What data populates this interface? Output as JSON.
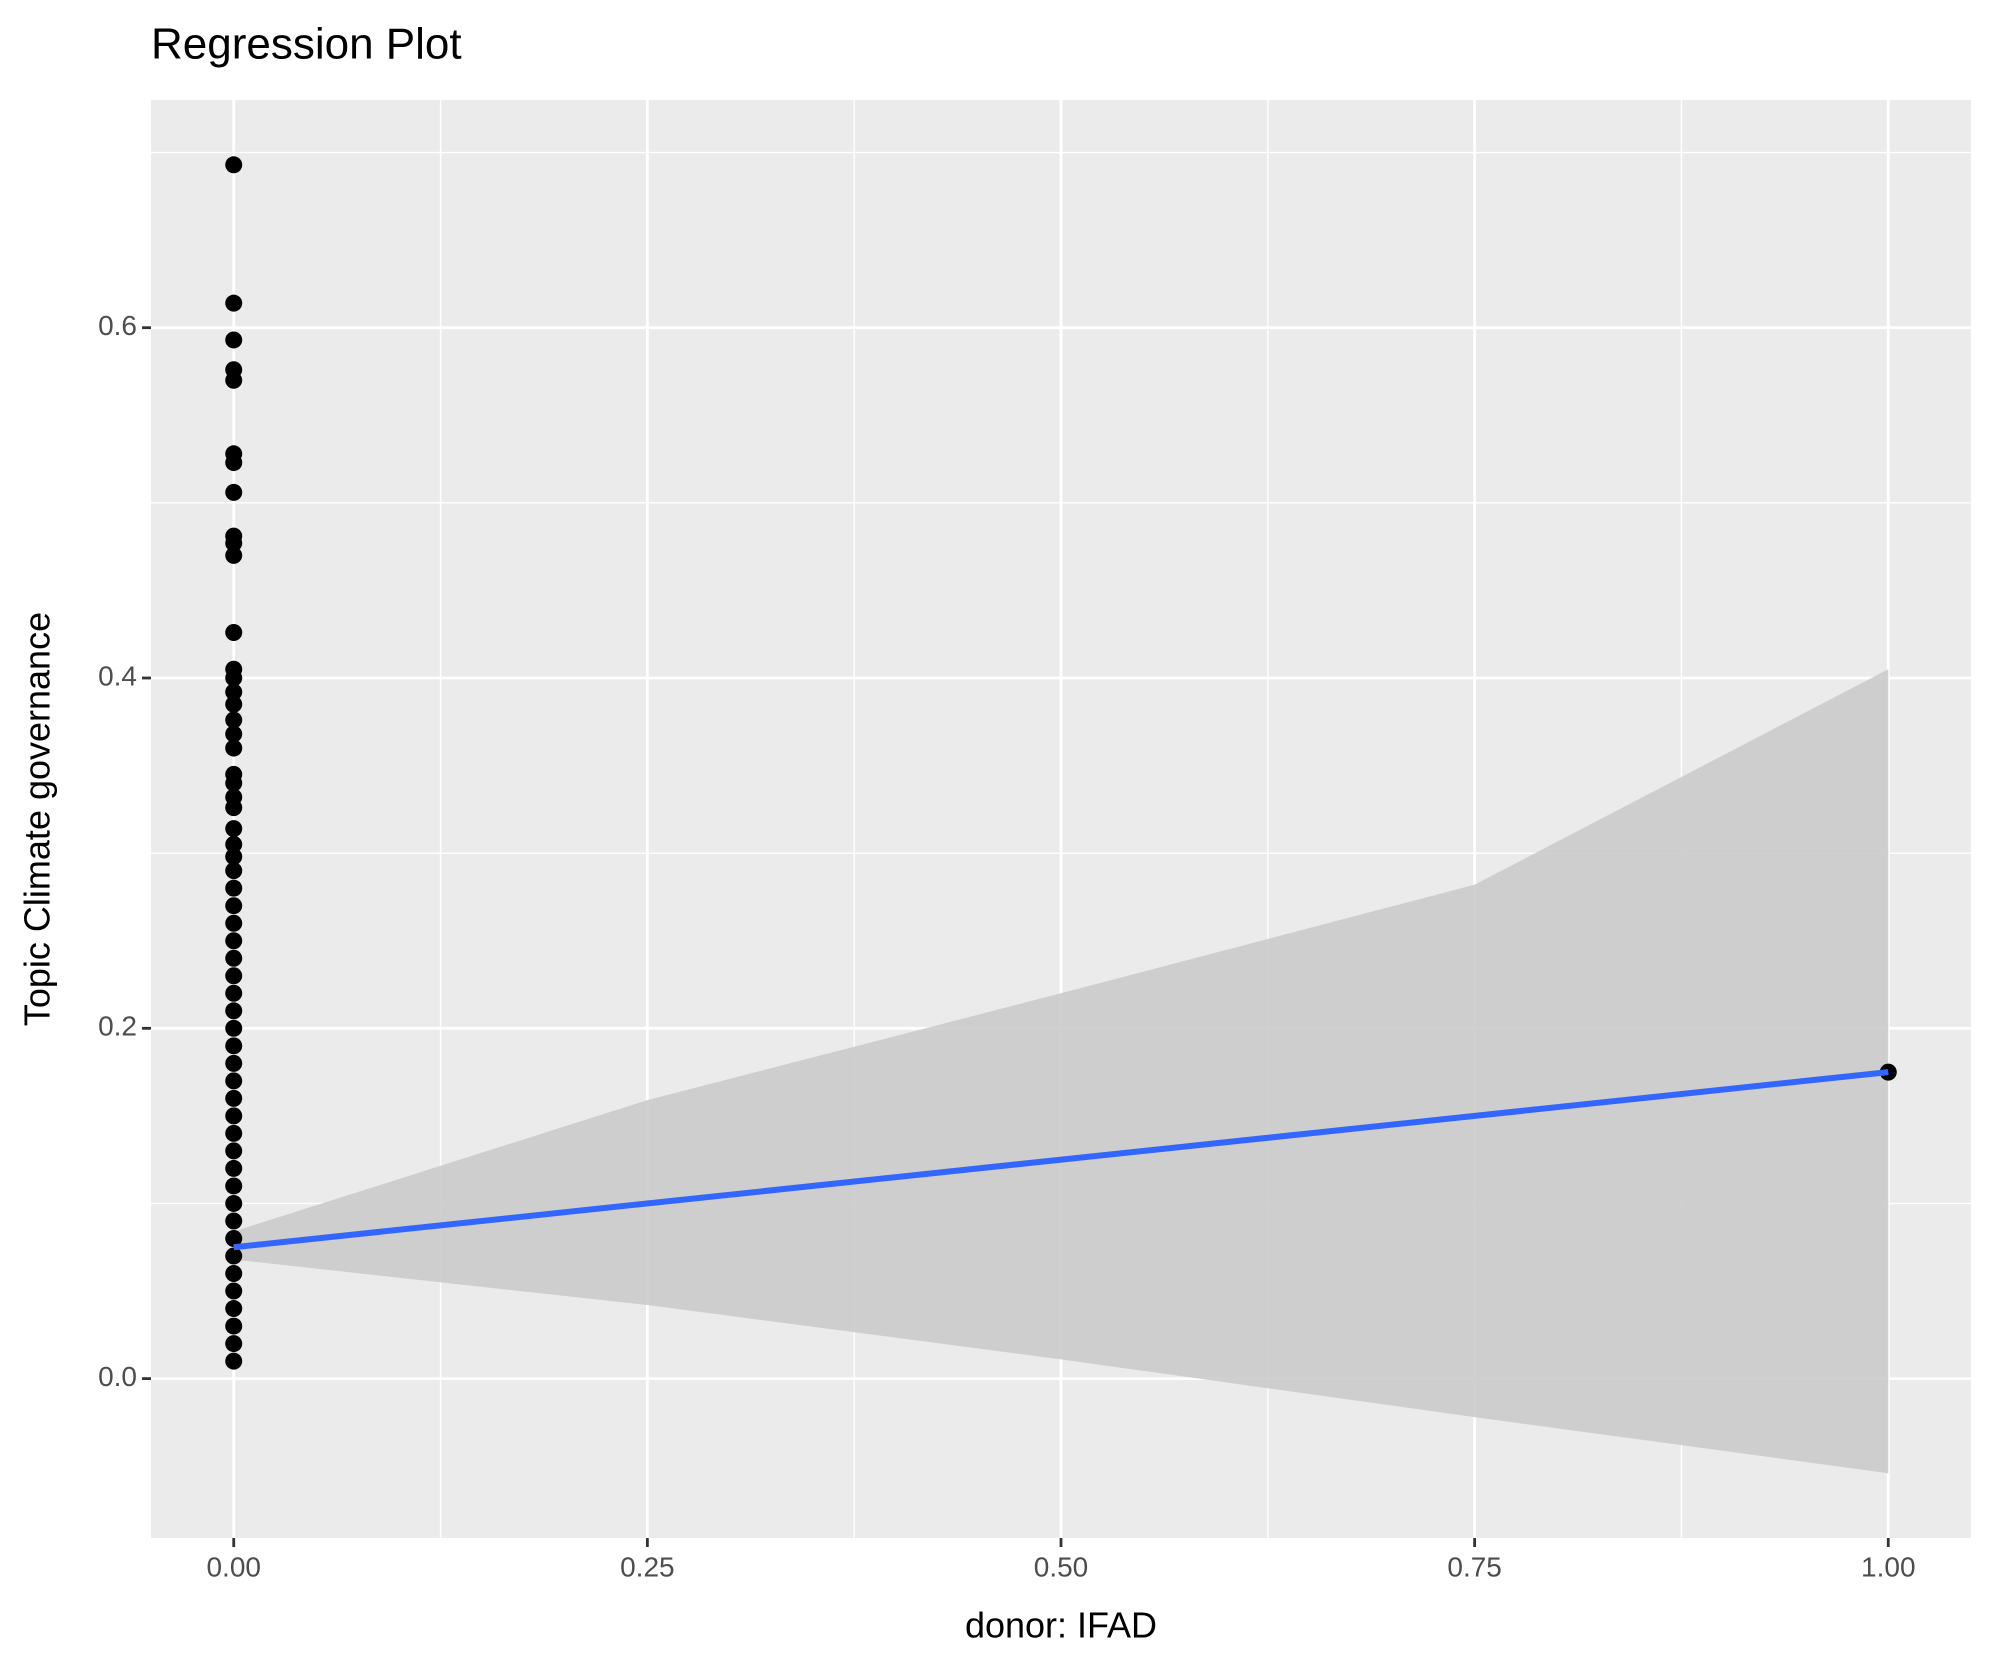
{
  "chart_data": {
    "type": "scatter",
    "title": "Regression Plot",
    "x_label": "donor: IFAD",
    "y_label": "Topic Climate governance",
    "points": {
      "color": "#000000",
      "x": [
        0,
        0,
        0,
        0,
        0,
        0,
        0,
        0,
        0,
        0,
        0,
        0,
        0,
        0,
        0,
        0,
        0,
        0,
        0,
        0,
        0,
        0,
        0,
        0,
        0,
        0,
        0,
        0,
        0,
        0,
        0,
        0,
        0,
        0,
        0,
        0,
        0,
        0,
        0,
        0,
        0,
        0,
        0,
        0,
        0,
        0,
        0,
        0,
        0,
        0,
        0,
        0,
        0,
        0,
        0,
        1
      ],
      "y": [
        0.693,
        0.614,
        0.593,
        0.576,
        0.57,
        0.528,
        0.523,
        0.506,
        0.481,
        0.477,
        0.47,
        0.426,
        0.405,
        0.4,
        0.392,
        0.385,
        0.376,
        0.368,
        0.36,
        0.345,
        0.34,
        0.332,
        0.326,
        0.314,
        0.305,
        0.298,
        0.29,
        0.28,
        0.27,
        0.26,
        0.25,
        0.24,
        0.23,
        0.22,
        0.21,
        0.2,
        0.19,
        0.18,
        0.17,
        0.16,
        0.15,
        0.14,
        0.13,
        0.12,
        0.11,
        0.1,
        0.09,
        0.08,
        0.07,
        0.06,
        0.05,
        0.04,
        0.03,
        0.02,
        0.01,
        0.175
      ]
    },
    "fit": {
      "color": "#3366ff",
      "x": [
        0,
        1
      ],
      "y": [
        0.075,
        0.175
      ]
    },
    "band": {
      "color": "#cbcbcb",
      "x": [
        0,
        0.25,
        0.5,
        0.75,
        1
      ],
      "lower": [
        0.068,
        0.042,
        0.011,
        -0.022,
        -0.054
      ],
      "upper": [
        0.084,
        0.159,
        0.22,
        0.282,
        0.405
      ]
    },
    "xlim": [
      -0.05,
      1.05
    ],
    "ylim": [
      -0.091,
      0.73
    ],
    "xticks": [
      {
        "value": 0,
        "label": "0.00"
      },
      0.25,
      {
        "value": 0.5,
        "label": "0.50"
      },
      0.75,
      {
        "value": 1,
        "label": "1.00"
      }
    ],
    "yticks": [
      {
        "value": 0,
        "label": "0.0"
      },
      0.2,
      0.4,
      0.6
    ],
    "xminor": [
      0.125,
      0.375,
      0.625,
      0.875
    ],
    "yminor": [
      0.1,
      0.3,
      0.5,
      0.7
    ],
    "grid": true
  }
}
